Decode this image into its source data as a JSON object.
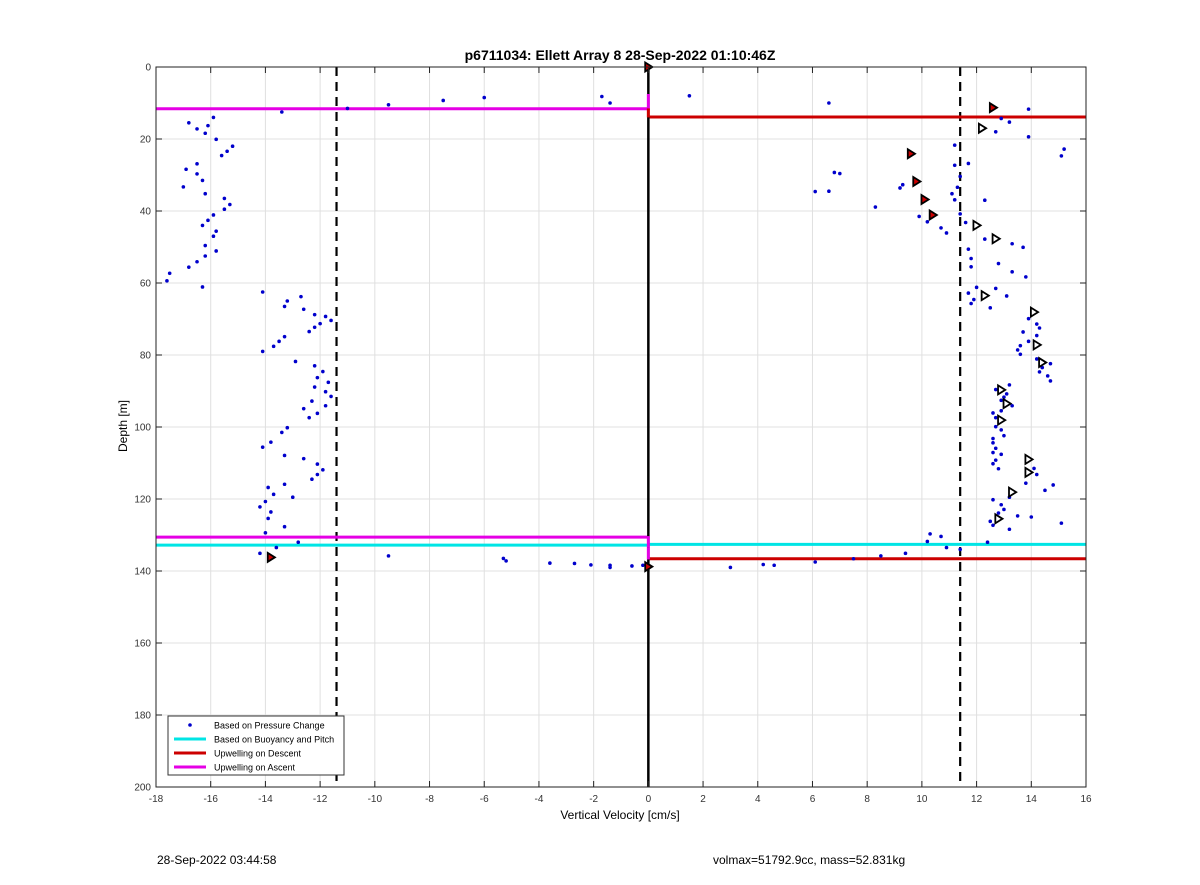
{
  "colors": {
    "pressure": "#0000cc",
    "buoyancy": "#00e5e5",
    "descent": "#cc0000",
    "ascent": "#e500e5",
    "grid": "#e0e0e0",
    "axis": "#222222",
    "dashed": "#000000"
  },
  "chart_data": {
    "type": "scatter",
    "title": "p6711034: Ellett Array 8 28-Sep-2022 01:10:46Z",
    "xlabel": "Vertical Velocity [cm/s]",
    "ylabel": "Depth [m]",
    "xlim": [
      -18,
      16
    ],
    "ylim": [
      0,
      200
    ],
    "y_reversed": true,
    "grid": true,
    "legend_placement": "bottom-left",
    "x_ticks": [
      "-18",
      "-16",
      "-14",
      "-12",
      "-10",
      "-8",
      "-6",
      "-4",
      "-2",
      "0",
      "2",
      "4",
      "6",
      "8",
      "10",
      "12",
      "14",
      "16"
    ],
    "y_ticks": [
      "0",
      "20",
      "40",
      "60",
      "80",
      "100",
      "120",
      "140",
      "160",
      "180",
      "200"
    ],
    "legend": [
      {
        "label": "Based on Pressure Change",
        "key": "pressure",
        "style": "dot"
      },
      {
        "label": "Based on Buoyancy and Pitch",
        "key": "buoyancy",
        "style": "line"
      },
      {
        "label": "Upwelling on Descent",
        "key": "descent",
        "style": "line"
      },
      {
        "label": "Upwelling on Ascent",
        "key": "ascent",
        "style": "line"
      }
    ],
    "series": [
      {
        "key": "pressure",
        "marker": "dot",
        "points": [
          [
            -11,
            11.5
          ],
          [
            -9.5,
            10.5
          ],
          [
            -7.5,
            9.3
          ],
          [
            -6,
            8.5
          ],
          [
            -1.7,
            8.2
          ],
          [
            -1.4,
            10
          ],
          [
            1.5,
            8
          ],
          [
            6.6,
            10
          ],
          [
            -13.4,
            12.5
          ],
          [
            -15.9,
            14
          ],
          [
            -16.8,
            15.5
          ],
          [
            -16.1,
            16.3
          ],
          [
            -16.5,
            17.2
          ],
          [
            -16.2,
            18.4
          ],
          [
            -15.8,
            20.1
          ],
          [
            -15.2,
            22
          ],
          [
            -15.4,
            23.4
          ],
          [
            -15.6,
            24.6
          ],
          [
            -16.5,
            26.9
          ],
          [
            -16.9,
            28.4
          ],
          [
            -16.5,
            29.7
          ],
          [
            -16.3,
            31.5
          ],
          [
            -17,
            33.3
          ],
          [
            -16.2,
            35.2
          ],
          [
            -15.5,
            36.5
          ],
          [
            -15.3,
            38.2
          ],
          [
            -15.5,
            39.5
          ],
          [
            -15.9,
            41.1
          ],
          [
            -16.1,
            42.6
          ],
          [
            -16.3,
            44
          ],
          [
            -15.8,
            45.6
          ],
          [
            -15.9,
            47
          ],
          [
            -16.2,
            49.6
          ],
          [
            -15.8,
            51.1
          ],
          [
            -16.2,
            52.5
          ],
          [
            -16.5,
            54.1
          ],
          [
            -16.8,
            55.6
          ],
          [
            -17.5,
            57.3
          ],
          [
            -17.6,
            59.4
          ],
          [
            -16.3,
            61.1
          ],
          [
            -14.1,
            62.5
          ],
          [
            -12.7,
            63.8
          ],
          [
            -13.2,
            65
          ],
          [
            -13.3,
            66.5
          ],
          [
            -12.6,
            67.3
          ],
          [
            -12.2,
            68.8
          ],
          [
            -11.8,
            69.3
          ],
          [
            -11.6,
            70.4
          ],
          [
            -12,
            71.3
          ],
          [
            -12.2,
            72.3
          ],
          [
            -12.4,
            73.5
          ],
          [
            -13.3,
            74.9
          ],
          [
            -13.5,
            76.2
          ],
          [
            -13.7,
            77.6
          ],
          [
            -14.1,
            79
          ],
          [
            -12.9,
            81.8
          ],
          [
            -12.2,
            83
          ],
          [
            -11.9,
            84.6
          ],
          [
            -12.1,
            86.3
          ],
          [
            -11.7,
            87.6
          ],
          [
            -12.2,
            88.9
          ],
          [
            -11.8,
            90.2
          ],
          [
            -11.6,
            91.5
          ],
          [
            -12.3,
            92.8
          ],
          [
            -11.8,
            94.1
          ],
          [
            -12.6,
            94.9
          ],
          [
            -12.1,
            96.2
          ],
          [
            -12.4,
            97.4
          ],
          [
            -13.2,
            100.2
          ],
          [
            -13.4,
            101.5
          ],
          [
            -13.8,
            104.2
          ],
          [
            -14.1,
            105.6
          ],
          [
            -13.3,
            107.9
          ],
          [
            -12.6,
            108.8
          ],
          [
            -12.1,
            110.3
          ],
          [
            -11.9,
            111.9
          ],
          [
            -12.1,
            113.2
          ],
          [
            -12.3,
            114.5
          ],
          [
            -13.3,
            115.9
          ],
          [
            -13.9,
            116.8
          ],
          [
            -13.7,
            118.7
          ],
          [
            -13,
            119.5
          ],
          [
            -14,
            120.7
          ],
          [
            -14.2,
            122.2
          ],
          [
            -13.8,
            123.6
          ],
          [
            -13.9,
            125.4
          ],
          [
            -13.3,
            127.7
          ],
          [
            -14,
            129.4
          ],
          [
            -12.8,
            132
          ],
          [
            -13.6,
            133.5
          ],
          [
            -14.2,
            135.1
          ],
          [
            -9.5,
            135.8
          ],
          [
            -5.3,
            136.5
          ],
          [
            -5.2,
            137.2
          ],
          [
            -3.6,
            137.8
          ],
          [
            -2.7,
            137.9
          ],
          [
            -2.1,
            138.3
          ],
          [
            -1.4,
            138.4
          ],
          [
            -1.4,
            139
          ],
          [
            -0.6,
            138.6
          ],
          [
            -0.2,
            138.4
          ],
          [
            3,
            139
          ],
          [
            4.2,
            138.2
          ],
          [
            4.6,
            138.4
          ],
          [
            6.1,
            137.5
          ],
          [
            7.5,
            136.6
          ],
          [
            8.5,
            135.8
          ],
          [
            9.4,
            135.1
          ],
          [
            10.3,
            129.7
          ],
          [
            10.2,
            131.8
          ],
          [
            10.7,
            130.4
          ],
          [
            10.9,
            133.5
          ],
          [
            11.4,
            134
          ],
          [
            12.4,
            132
          ],
          [
            12.9,
            14.3
          ],
          [
            13.2,
            15.3
          ],
          [
            13.9,
            11.7
          ],
          [
            12.7,
            18
          ],
          [
            13.9,
            19.4
          ],
          [
            15.2,
            22.8
          ],
          [
            15.1,
            24.7
          ],
          [
            11.2,
            21.7
          ],
          [
            11.2,
            27.3
          ],
          [
            11.7,
            26.8
          ],
          [
            11.4,
            30.4
          ],
          [
            11.3,
            33.4
          ],
          [
            9.3,
            32.7
          ],
          [
            9.2,
            33.6
          ],
          [
            11.1,
            35.2
          ],
          [
            11.2,
            36.9
          ],
          [
            12.3,
            37
          ],
          [
            11.4,
            40.8
          ],
          [
            8.3,
            38.9
          ],
          [
            6.8,
            29.3
          ],
          [
            7,
            29.6
          ],
          [
            6.6,
            34.5
          ],
          [
            6.1,
            34.6
          ],
          [
            11.6,
            43.2
          ],
          [
            10.7,
            44.7
          ],
          [
            10.9,
            46.1
          ],
          [
            10.2,
            43
          ],
          [
            9.9,
            41.5
          ],
          [
            12.3,
            47.8
          ],
          [
            13.3,
            49.1
          ],
          [
            13.7,
            50.1
          ],
          [
            11.7,
            50.6
          ],
          [
            11.8,
            53.2
          ],
          [
            11.8,
            55.5
          ],
          [
            12.8,
            54.6
          ],
          [
            13.3,
            56.9
          ],
          [
            13.8,
            58.3
          ],
          [
            12,
            61.2
          ],
          [
            12.7,
            61.5
          ],
          [
            11.7,
            62.8
          ],
          [
            13.1,
            63.6
          ],
          [
            11.9,
            64.6
          ],
          [
            11.8,
            65.7
          ],
          [
            12.5,
            66.9
          ],
          [
            13.9,
            69.9
          ],
          [
            14.2,
            71.4
          ],
          [
            14.3,
            72.5
          ],
          [
            13.7,
            73.6
          ],
          [
            14.2,
            74.6
          ],
          [
            13.9,
            76.2
          ],
          [
            13.6,
            77.4
          ],
          [
            13.5,
            78.6
          ],
          [
            13.6,
            79.8
          ],
          [
            14.2,
            81.1
          ],
          [
            14.4,
            83.5
          ],
          [
            14.7,
            82.4
          ],
          [
            14.3,
            84.7
          ],
          [
            14.6,
            85.8
          ],
          [
            14.7,
            87.2
          ],
          [
            13.2,
            88.3
          ],
          [
            12.7,
            89.6
          ],
          [
            13.1,
            90.8
          ],
          [
            13,
            91.7
          ],
          [
            12.9,
            92.6
          ],
          [
            13.3,
            94.1
          ],
          [
            12.9,
            95.5
          ],
          [
            12.6,
            96.1
          ],
          [
            12.7,
            97.4
          ],
          [
            12.7,
            99.9
          ],
          [
            12.9,
            100.8
          ],
          [
            13,
            102.4
          ],
          [
            12.6,
            103.2
          ],
          [
            12.6,
            104.4
          ],
          [
            12.7,
            105.9
          ],
          [
            12.6,
            107.1
          ],
          [
            12.9,
            107.6
          ],
          [
            12.7,
            109.2
          ],
          [
            12.6,
            110.2
          ],
          [
            12.8,
            111.6
          ],
          [
            14.1,
            111.5
          ],
          [
            14.2,
            113.2
          ],
          [
            14.5,
            117.6
          ],
          [
            14.8,
            116.1
          ],
          [
            13.8,
            115.6
          ],
          [
            13.2,
            119.5
          ],
          [
            12.6,
            120.2
          ],
          [
            12.9,
            121.6
          ],
          [
            13,
            122.9
          ],
          [
            12.8,
            123.9
          ],
          [
            13.5,
            124.7
          ],
          [
            14,
            125
          ],
          [
            15.1,
            126.7
          ],
          [
            13.2,
            128.4
          ],
          [
            12.6,
            127.3
          ],
          [
            12.5,
            126.2
          ]
        ]
      },
      {
        "key": "descent_markers",
        "marker": "filled-triangle",
        "points": [
          [
            0,
            0
          ],
          [
            12.6,
            11.3
          ],
          [
            9.6,
            24.1
          ],
          [
            9.8,
            31.8
          ],
          [
            10.1,
            36.8
          ],
          [
            10.4,
            41.1
          ],
          [
            -13.8,
            136.2
          ],
          [
            0,
            138.8
          ]
        ]
      },
      {
        "key": "ascent_markers",
        "marker": "open-triangle",
        "points": [
          [
            12.2,
            17
          ],
          [
            12,
            44
          ],
          [
            12.7,
            47.7
          ],
          [
            12.3,
            63.5
          ],
          [
            14.1,
            68.1
          ],
          [
            14.2,
            77.2
          ],
          [
            14.4,
            82.1
          ],
          [
            12.9,
            89.7
          ],
          [
            13.1,
            93.5
          ],
          [
            12.9,
            98.1
          ],
          [
            13.9,
            109
          ],
          [
            13.9,
            112.6
          ],
          [
            13.3,
            118.1
          ],
          [
            12.8,
            125.5
          ]
        ]
      },
      {
        "key": "buoyancy",
        "segments": [
          {
            "x": [
              -18,
              0
            ],
            "y": 132.8
          },
          {
            "x": [
              0,
              16
            ],
            "y": 132.6
          }
        ]
      },
      {
        "key": "descent",
        "segments": [
          {
            "x": [
              0,
              16
            ],
            "y": 13.9
          },
          {
            "x": [
              0,
              16
            ],
            "y": 136.6
          }
        ]
      },
      {
        "key": "ascent",
        "segments": [
          {
            "x": [
              -18,
              0
            ],
            "y": 11.6
          },
          {
            "x": [
              -18,
              0
            ],
            "y": 130.6
          }
        ]
      },
      {
        "key": "center_trace",
        "points": [
          [
            0,
            0
          ],
          [
            0,
            200
          ]
        ]
      }
    ],
    "reference_lines": {
      "x": [
        -11.4,
        11.4
      ],
      "style": "dashed"
    }
  },
  "footer": {
    "left": "28-Sep-2022 03:44:58",
    "right": "volmax=51792.9cc, mass=52.831kg"
  }
}
